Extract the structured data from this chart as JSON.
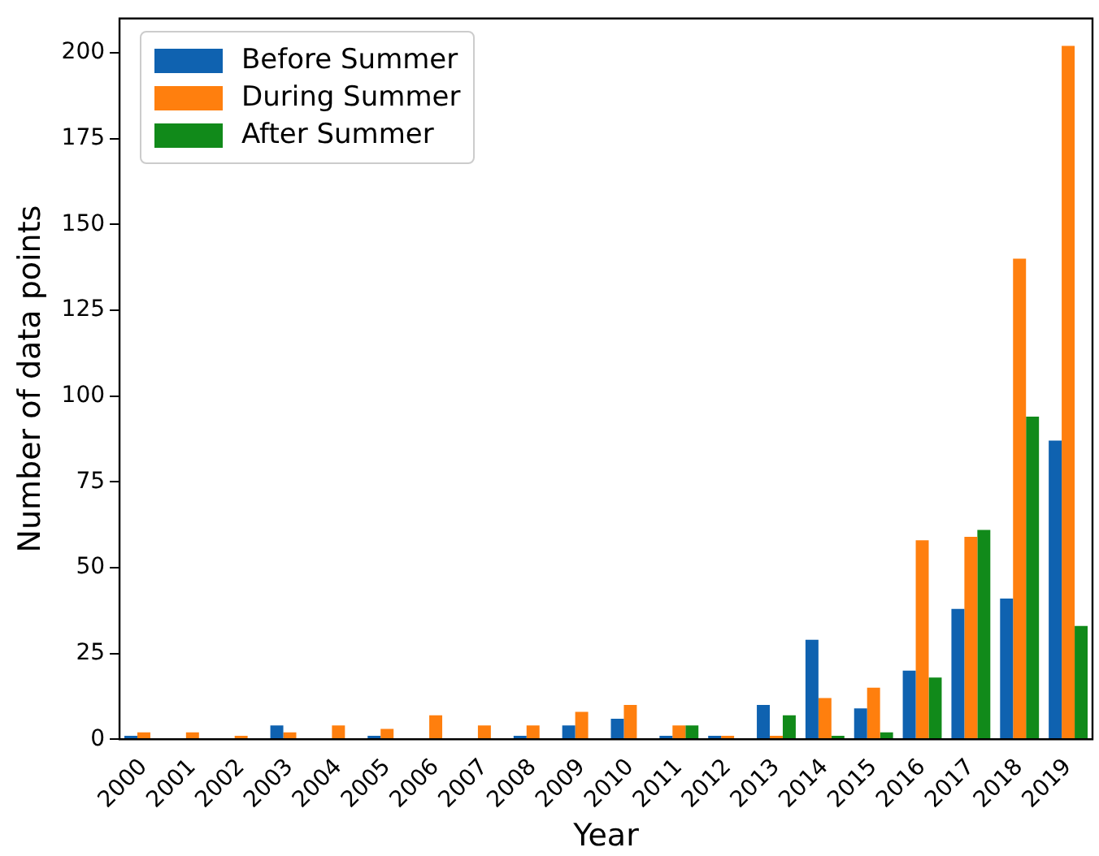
{
  "chart_data": {
    "type": "bar",
    "xlabel": "Year",
    "ylabel": "Number of data points",
    "categories": [
      "2000",
      "2001",
      "2002",
      "2003",
      "2004",
      "2005",
      "2006",
      "2007",
      "2008",
      "2009",
      "2010",
      "2011",
      "2012",
      "2013",
      "2014",
      "2015",
      "2016",
      "2017",
      "2018",
      "2019"
    ],
    "series": [
      {
        "name": "Before Summer",
        "color": "#0f62b0",
        "values": [
          1,
          0,
          0,
          4,
          0,
          1,
          0,
          0,
          1,
          4,
          6,
          1,
          1,
          10,
          29,
          9,
          20,
          38,
          41,
          87
        ]
      },
      {
        "name": "During Summer",
        "color": "#ff7f0e",
        "values": [
          2,
          2,
          1,
          2,
          4,
          3,
          7,
          4,
          4,
          8,
          10,
          4,
          1,
          1,
          12,
          15,
          58,
          59,
          140,
          202
        ]
      },
      {
        "name": "After Summer",
        "color": "#118a1a",
        "values": [
          0,
          0,
          0,
          0,
          0,
          0,
          0,
          0,
          0,
          0,
          0,
          4,
          0,
          7,
          1,
          2,
          18,
          61,
          94,
          33
        ]
      }
    ],
    "ylim": [
      0,
      210
    ],
    "yticks": [
      0,
      25,
      50,
      75,
      100,
      125,
      150,
      175,
      200
    ],
    "grid": false,
    "legend": "top left"
  }
}
